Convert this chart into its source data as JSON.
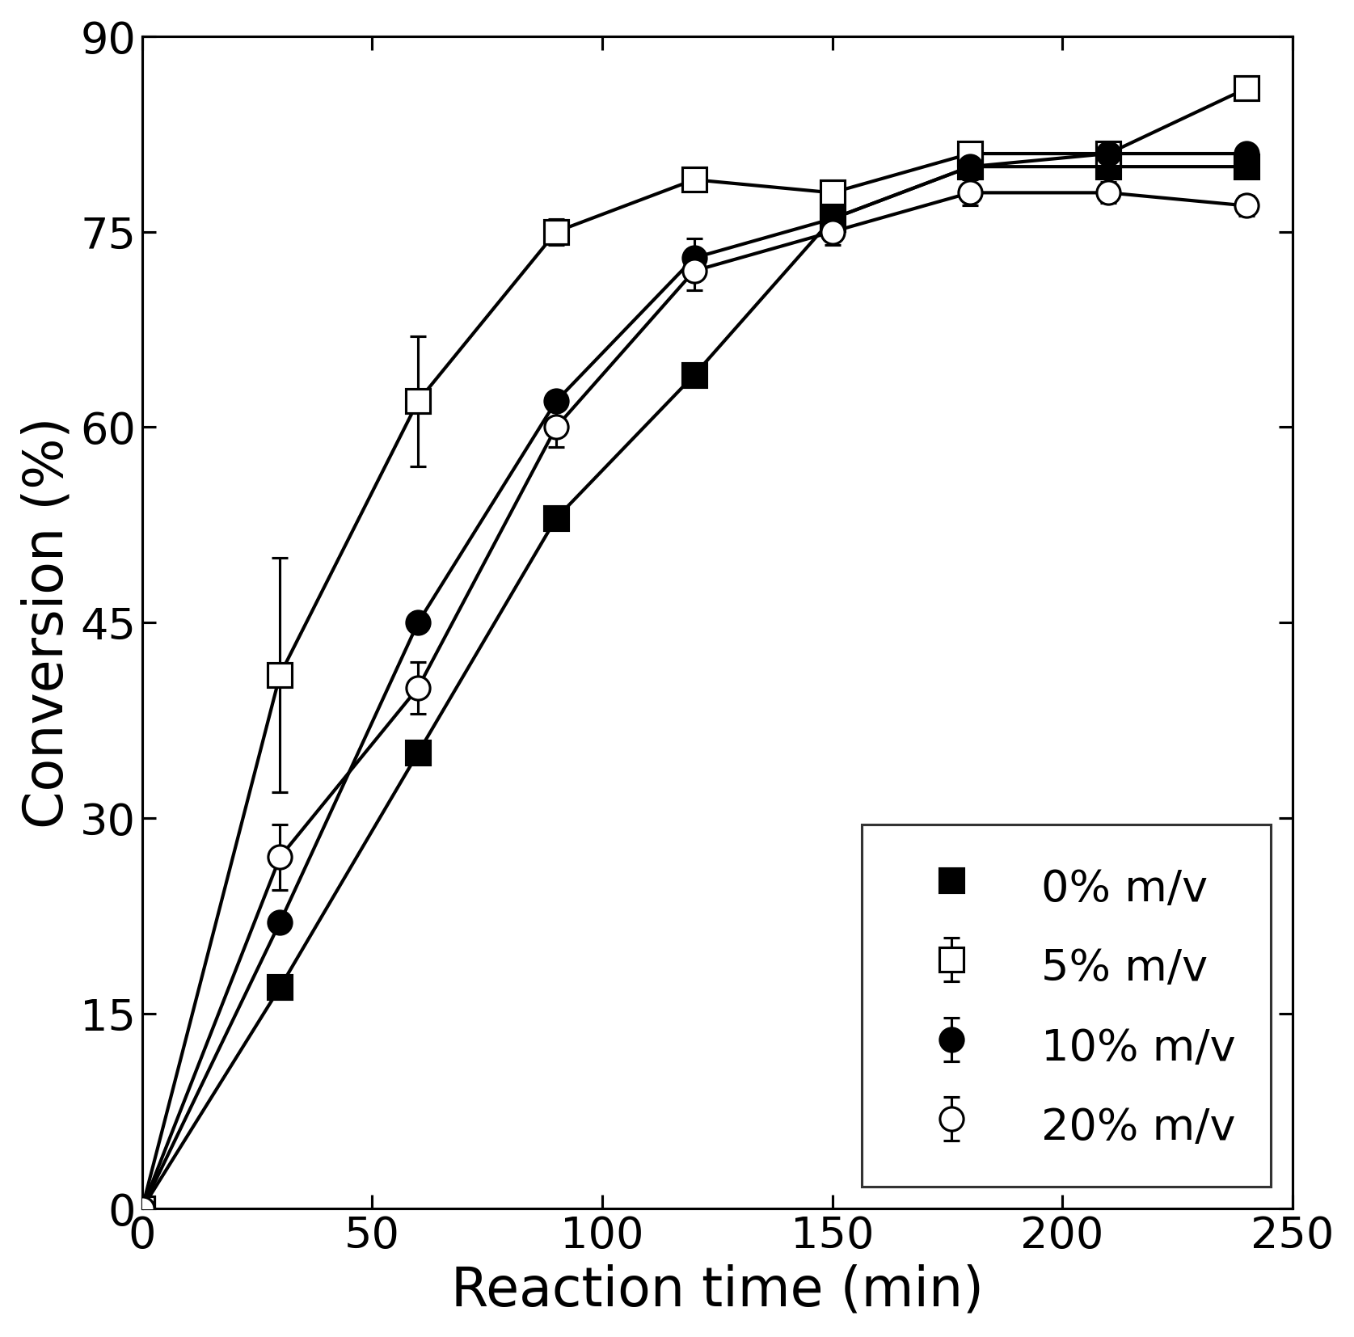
{
  "title": "",
  "xlabel": "Reaction time (min)",
  "ylabel": "Conversion (%)",
  "xlim": [
    0,
    250
  ],
  "ylim": [
    0,
    90
  ],
  "xticks": [
    0,
    50,
    100,
    150,
    200,
    250
  ],
  "yticks": [
    0,
    15,
    30,
    45,
    60,
    75,
    90
  ],
  "series": [
    {
      "label": "0% m/v",
      "x": [
        0,
        30,
        60,
        90,
        120,
        150,
        180,
        210,
        240
      ],
      "y": [
        0,
        17,
        35,
        53,
        64,
        76,
        80,
        80,
        80
      ],
      "yerr": [
        0,
        0,
        0,
        0,
        0,
        0,
        0,
        0,
        0
      ],
      "marker": "s",
      "fillstyle": "full",
      "color": "black",
      "markersize": 14,
      "markeredgewidth": 1.5
    },
    {
      "label": "5% m/v",
      "x": [
        0,
        30,
        60,
        90,
        120,
        150,
        180,
        210,
        240
      ],
      "y": [
        0,
        41,
        62,
        75,
        79,
        78,
        81,
        81,
        86
      ],
      "yerr": [
        0,
        9,
        5,
        1.0,
        0.5,
        0.5,
        0.5,
        0.5,
        0.5
      ],
      "marker": "s",
      "fillstyle": "none",
      "color": "black",
      "markersize": 14,
      "markeredgewidth": 1.5
    },
    {
      "label": "10% m/v",
      "x": [
        0,
        30,
        60,
        90,
        120,
        150,
        180,
        210,
        240
      ],
      "y": [
        0,
        22,
        45,
        62,
        73,
        76,
        80,
        81,
        81
      ],
      "yerr": [
        0,
        0,
        0,
        0,
        1.5,
        1.0,
        0.5,
        0.5,
        0.5
      ],
      "marker": "o",
      "fillstyle": "full",
      "color": "black",
      "markersize": 14,
      "markeredgewidth": 1.5
    },
    {
      "label": "20% m/v",
      "x": [
        0,
        30,
        60,
        90,
        120,
        150,
        180,
        210,
        240
      ],
      "y": [
        0,
        27,
        40,
        60,
        72,
        75,
        78,
        78,
        77
      ],
      "yerr": [
        0,
        2.5,
        2.0,
        1.5,
        1.5,
        1.0,
        1.0,
        0.8,
        0.8
      ],
      "marker": "o",
      "fillstyle": "none",
      "color": "black",
      "markersize": 14,
      "markeredgewidth": 1.5
    }
  ],
  "legend_loc": "lower right",
  "legend_fontsize": 26,
  "tick_fontsize": 26,
  "label_fontsize": 32,
  "linewidth": 2.0,
  "elinewidth": 1.5,
  "capsize": 5,
  "capthick": 1.5,
  "background_color": "#ffffff",
  "fig_width": 11.17,
  "fig_height": 11.03,
  "dpi": 150
}
